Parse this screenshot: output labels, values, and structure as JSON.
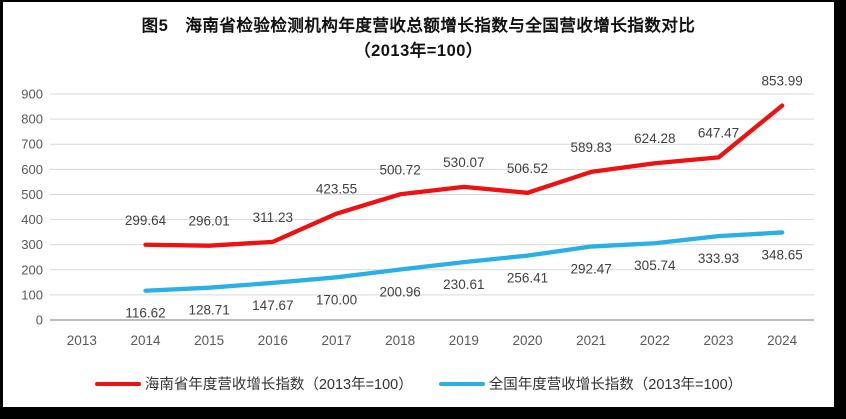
{
  "title": {
    "line1": "图5　海南省检验检测机构年度营收总额增长指数与全国营收增长指数对比",
    "line2": "（2013年=100）"
  },
  "chart_data": {
    "type": "line",
    "title": "图5 海南省检验检测机构年度营收总额增长指数与全国营收增长指数对比（2013年=100）",
    "categories": [
      "2013",
      "2014",
      "2015",
      "2016",
      "2017",
      "2018",
      "2019",
      "2020",
      "2021",
      "2022",
      "2023",
      "2024"
    ],
    "series": [
      {
        "name": "海南省年度营收增长指数（2013年=100）",
        "color": "#ee1111",
        "label_side": "above",
        "values": [
          null,
          299.64,
          296.01,
          311.23,
          423.55,
          500.72,
          530.07,
          506.52,
          589.83,
          624.28,
          647.47,
          853.99
        ]
      },
      {
        "name": "全国年度营收增长指数（2013年=100）",
        "color": "#29b0e6",
        "label_side": "below",
        "values": [
          null,
          116.62,
          128.71,
          147.67,
          170.0,
          200.96,
          230.61,
          256.41,
          292.47,
          305.74,
          333.93,
          348.65
        ]
      }
    ],
    "xlabel": "",
    "ylabel": "",
    "ylim": [
      0,
      900
    ],
    "y_ticks": [
      0,
      100,
      200,
      300,
      400,
      500,
      600,
      700,
      800,
      900
    ],
    "grid": true,
    "legend_position": "bottom",
    "data_labels": true,
    "label_decimals": 2
  },
  "colors": {
    "frame_border": "#000000",
    "background": "#ffffff",
    "gridline": "#d9d9d9",
    "axis_line": "#a6a6a6",
    "tick_label": "#595959",
    "data_label": "#404040"
  }
}
